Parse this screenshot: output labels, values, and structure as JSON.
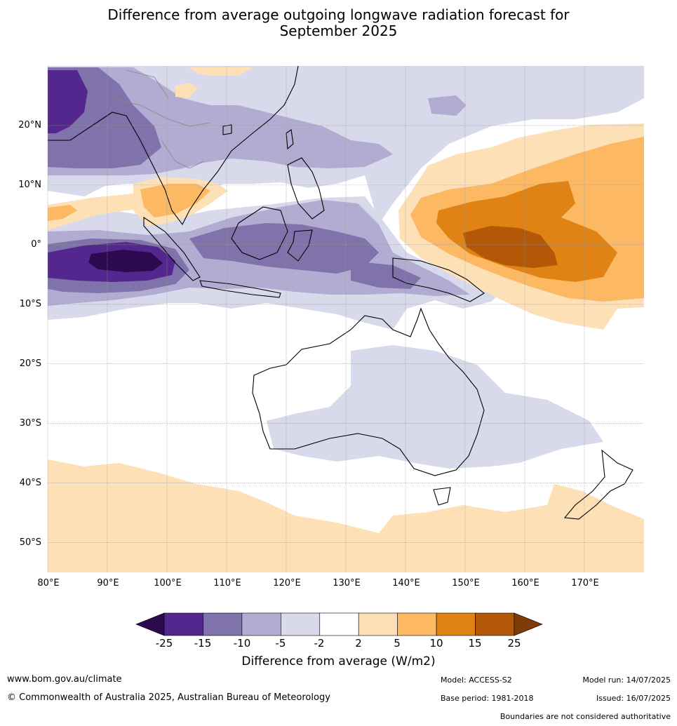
{
  "title": {
    "line1": "Difference from average outgoing longwave radiation forecast for",
    "line2": "September 2025"
  },
  "map": {
    "lat_labels": [
      "20°N",
      "10°N",
      "0°",
      "10°S",
      "20°S",
      "30°S",
      "40°S",
      "50°S"
    ],
    "lon_labels": [
      "80°E",
      "90°E",
      "100°E",
      "110°E",
      "120°E",
      "130°E",
      "140°E",
      "150°E",
      "160°E",
      "170°E"
    ],
    "extent": {
      "lon_min": 80,
      "lon_max": 180,
      "lat_min": -55,
      "lat_max": 30
    }
  },
  "colorbar": {
    "label": "Difference from average (W/m2)",
    "ticks": [
      "-25",
      "-15",
      "-10",
      "-5",
      "-2",
      "2",
      "5",
      "10",
      "15",
      "25"
    ],
    "colors": {
      "below_min": "#2b0a4f",
      "n25_n15": "#54278f",
      "n15_n10": "#8073ac",
      "n10_n5": "#b2abd2",
      "n5_n2": "#d8daeb",
      "n2_2": "#ffffff",
      "p2_p5": "#fee0b6",
      "p5_p10": "#fdb863",
      "p10_p15": "#e08214",
      "p15_p25": "#b35806",
      "above_max": "#7f3b08"
    }
  },
  "footer": {
    "website": "www.bom.gov.au/climate",
    "copyright": "© Commonwealth of Australia 2025, Australian Bureau of Meteorology",
    "model": "Model: ACCESS-S2",
    "base_period": "Base period: 1981-2018",
    "model_run": "Model run: 14/07/2025",
    "issued": "Issued: 16/07/2025",
    "disclaimer": "Boundaries are not considered authoritative"
  }
}
